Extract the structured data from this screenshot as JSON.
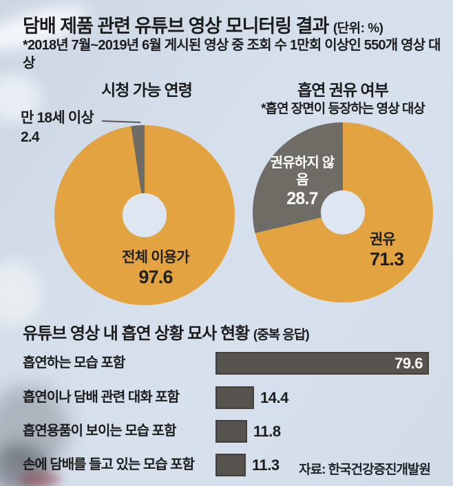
{
  "page": {
    "title": "담배 제품 관련 유튜브 영상 모니터링 결과",
    "unit_note": "(단위: %)",
    "subtitle": "*2018년 7월~2019년 6월 게시된 영상 중 조회 수 1만회 이상인 550개 영상 대상",
    "source": "자료: 한국건강증진개발원"
  },
  "colors": {
    "orange": "#E3A341",
    "gray_slice": "#6F6B65",
    "bar": "#56524E",
    "hole": "#DDE6F1",
    "background": "#D3DDE9",
    "text": "#1C1C1C",
    "white": "#FFFFFF"
  },
  "chart_data": [
    {
      "type": "pie",
      "donut": true,
      "title": "시청 가능 연령",
      "slices": [
        {
          "label": "전체 이용가",
          "value": 97.6,
          "color_key": "orange",
          "label_position": "inside"
        },
        {
          "label": "만 18세 이상",
          "value": 2.4,
          "color_key": "gray_slice",
          "label_position": "outside-callout"
        }
      ]
    },
    {
      "type": "pie",
      "donut": true,
      "title": "흡연 권유 여부",
      "subtitle": "*흡연 장면이 등장하는 영상 대상",
      "slices": [
        {
          "label": "권유",
          "value": 71.3,
          "color_key": "orange",
          "label_position": "inside"
        },
        {
          "label": "권유하지 않음",
          "value": 28.7,
          "color_key": "gray_slice",
          "label_position": "inside"
        }
      ]
    },
    {
      "type": "bar",
      "orientation": "horizontal",
      "title": "유튜브 영상 내 흡연 상황 묘사 현황",
      "title_note": "(중복 응답)",
      "categories": [
        "흡연하는 모습 포함",
        "흡연이나 담배 관련 대화 포함",
        "흡연용품이 보이는 모습 포함",
        "손에 담배를 들고 있는 모습 포함"
      ],
      "values": [
        79.6,
        14.4,
        11.8,
        11.3
      ],
      "xlim": [
        0,
        79.6
      ],
      "value_labels": "shown",
      "grid": false,
      "legend": false
    }
  ]
}
